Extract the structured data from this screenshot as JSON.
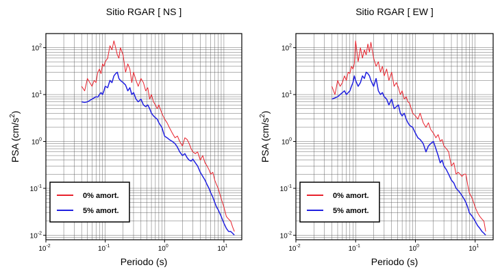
{
  "chart_data": [
    {
      "type": "line",
      "title": "Sitio RGAR [ NS ]",
      "xlabel": "Periodo (s)",
      "ylabel_base": "PSA (cm/s",
      "ylabel_sup": "2",
      "ylabel_end": ")",
      "xscale": "log",
      "yscale": "log",
      "xlim": [
        0.01,
        20
      ],
      "ylim": [
        0.008,
        200
      ],
      "grid": true,
      "legend_position": "bottom-left",
      "xticks": [
        {
          "base": "10",
          "exp": "-2"
        },
        {
          "base": "10",
          "exp": "-1"
        },
        {
          "base": "10",
          "exp": "0"
        },
        {
          "base": "10",
          "exp": "1"
        }
      ],
      "yticks": [
        {
          "base": "10",
          "exp": "-2"
        },
        {
          "base": "10",
          "exp": "-1"
        },
        {
          "base": "10",
          "exp": "0"
        },
        {
          "base": "10",
          "exp": "1"
        },
        {
          "base": "10",
          "exp": "2"
        }
      ],
      "series": [
        {
          "name": "0% amort.",
          "color": "#e8202a",
          "x": [
            0.04,
            0.045,
            0.05,
            0.055,
            0.06,
            0.065,
            0.07,
            0.075,
            0.08,
            0.085,
            0.09,
            0.095,
            0.1,
            0.11,
            0.12,
            0.13,
            0.14,
            0.15,
            0.16,
            0.17,
            0.18,
            0.2,
            0.22,
            0.24,
            0.26,
            0.28,
            0.3,
            0.33,
            0.36,
            0.4,
            0.44,
            0.48,
            0.52,
            0.56,
            0.6,
            0.65,
            0.7,
            0.75,
            0.8,
            0.9,
            1.0,
            1.1,
            1.2,
            1.35,
            1.5,
            1.65,
            1.8,
            2.0,
            2.2,
            2.4,
            2.6,
            2.8,
            3.0,
            3.3,
            3.6,
            4.0,
            4.4,
            4.8,
            5.2,
            5.6,
            6.0,
            6.5,
            7.0,
            7.5,
            8.0,
            9.0,
            10.0,
            11.0,
            12.0,
            13.0,
            14.0,
            15.0
          ],
          "y": [
            15,
            12,
            22,
            18,
            15,
            20,
            18,
            30,
            35,
            28,
            45,
            40,
            50,
            60,
            110,
            90,
            140,
            100,
            70,
            60,
            100,
            70,
            30,
            45,
            35,
            18,
            30,
            20,
            15,
            22,
            18,
            12,
            14,
            8,
            10,
            7,
            6,
            5,
            6,
            4,
            3,
            2.5,
            2,
            1.5,
            1.2,
            1.3,
            1,
            0.8,
            1.2,
            1.1,
            0.9,
            0.7,
            0.6,
            0.55,
            0.6,
            0.4,
            0.5,
            0.35,
            0.3,
            0.25,
            0.2,
            0.22,
            0.15,
            0.12,
            0.1,
            0.06,
            0.04,
            0.025,
            0.022,
            0.02,
            0.015,
            0.012
          ]
        },
        {
          "name": "5% amort.",
          "color": "#1f1fe0",
          "x": [
            0.04,
            0.045,
            0.05,
            0.055,
            0.06,
            0.065,
            0.07,
            0.075,
            0.08,
            0.085,
            0.09,
            0.095,
            0.1,
            0.11,
            0.12,
            0.13,
            0.14,
            0.15,
            0.16,
            0.17,
            0.18,
            0.2,
            0.22,
            0.24,
            0.26,
            0.28,
            0.3,
            0.33,
            0.36,
            0.4,
            0.44,
            0.48,
            0.52,
            0.56,
            0.6,
            0.65,
            0.7,
            0.75,
            0.8,
            0.9,
            1.0,
            1.1,
            1.2,
            1.35,
            1.5,
            1.65,
            1.8,
            2.0,
            2.2,
            2.4,
            2.6,
            2.8,
            3.0,
            3.3,
            3.6,
            4.0,
            4.4,
            4.8,
            5.2,
            5.6,
            6.0,
            6.5,
            7.0,
            7.5,
            8.0,
            9.0,
            10.0,
            11.0,
            12.0,
            13.0,
            14.0,
            15.0
          ],
          "y": [
            7,
            6.8,
            7,
            7.5,
            8,
            8.5,
            9,
            8.8,
            10,
            11,
            10,
            12,
            15,
            14,
            20,
            18,
            25,
            28,
            30,
            22,
            20,
            18,
            16,
            12,
            14,
            10,
            11,
            8,
            7,
            8,
            6,
            5.5,
            6,
            5,
            4,
            3.5,
            3.2,
            3,
            2.5,
            2,
            1.3,
            1.2,
            1.1,
            1.0,
            0.9,
            0.75,
            0.6,
            0.5,
            0.55,
            0.45,
            0.4,
            0.38,
            0.42,
            0.35,
            0.3,
            0.22,
            0.18,
            0.15,
            0.12,
            0.1,
            0.08,
            0.065,
            0.05,
            0.04,
            0.035,
            0.025,
            0.018,
            0.014,
            0.012,
            0.012,
            0.011,
            0.01
          ]
        }
      ]
    },
    {
      "type": "line",
      "title": "Sitio RGAR [ EW ]",
      "xlabel": "Periodo (s)",
      "ylabel_base": "PSA (cm/s",
      "ylabel_sup": "2",
      "ylabel_end": ")",
      "xscale": "log",
      "yscale": "log",
      "xlim": [
        0.01,
        20
      ],
      "ylim": [
        0.008,
        200
      ],
      "grid": true,
      "legend_position": "bottom-left",
      "xticks": [
        {
          "base": "10",
          "exp": "-2"
        },
        {
          "base": "10",
          "exp": "-1"
        },
        {
          "base": "10",
          "exp": "0"
        },
        {
          "base": "10",
          "exp": "1"
        }
      ],
      "yticks": [
        {
          "base": "10",
          "exp": "-2"
        },
        {
          "base": "10",
          "exp": "-1"
        },
        {
          "base": "10",
          "exp": "0"
        },
        {
          "base": "10",
          "exp": "1"
        },
        {
          "base": "10",
          "exp": "2"
        }
      ],
      "series": [
        {
          "name": "0% amort.",
          "color": "#e8202a",
          "x": [
            0.04,
            0.045,
            0.05,
            0.055,
            0.06,
            0.065,
            0.07,
            0.075,
            0.08,
            0.085,
            0.09,
            0.095,
            0.1,
            0.11,
            0.12,
            0.13,
            0.14,
            0.15,
            0.16,
            0.17,
            0.18,
            0.2,
            0.22,
            0.24,
            0.26,
            0.28,
            0.3,
            0.33,
            0.36,
            0.4,
            0.44,
            0.48,
            0.52,
            0.56,
            0.6,
            0.65,
            0.7,
            0.75,
            0.8,
            0.9,
            1.0,
            1.1,
            1.2,
            1.35,
            1.5,
            1.65,
            1.8,
            2.0,
            2.2,
            2.4,
            2.6,
            2.8,
            3.0,
            3.3,
            3.6,
            4.0,
            4.4,
            4.8,
            5.2,
            5.6,
            6.0,
            6.5,
            7.0,
            7.5,
            8.0,
            9.0,
            10.0,
            11.0,
            12.0,
            13.0,
            14.0,
            15.0
          ],
          "y": [
            15,
            10,
            20,
            15,
            18,
            25,
            20,
            30,
            28,
            40,
            35,
            45,
            140,
            50,
            100,
            60,
            90,
            70,
            120,
            80,
            130,
            60,
            40,
            50,
            30,
            40,
            25,
            35,
            20,
            30,
            15,
            18,
            14,
            10,
            12,
            8,
            9,
            7,
            6.5,
            4,
            3.5,
            3,
            4,
            2.5,
            2,
            2.5,
            1.8,
            1.5,
            1.2,
            1.4,
            1,
            1.1,
            0.8,
            0.7,
            0.6,
            0.3,
            0.35,
            0.2,
            0.22,
            0.2,
            0.18,
            0.2,
            0.2,
            0.12,
            0.08,
            0.06,
            0.04,
            0.03,
            0.025,
            0.022,
            0.02,
            0.012
          ]
        },
        {
          "name": "5% amort.",
          "color": "#1f1fe0",
          "x": [
            0.04,
            0.045,
            0.05,
            0.055,
            0.06,
            0.065,
            0.07,
            0.075,
            0.08,
            0.085,
            0.09,
            0.095,
            0.1,
            0.11,
            0.12,
            0.13,
            0.14,
            0.15,
            0.16,
            0.17,
            0.18,
            0.2,
            0.22,
            0.24,
            0.26,
            0.28,
            0.3,
            0.33,
            0.36,
            0.4,
            0.44,
            0.48,
            0.52,
            0.56,
            0.6,
            0.65,
            0.7,
            0.75,
            0.8,
            0.9,
            1.0,
            1.1,
            1.2,
            1.35,
            1.5,
            1.65,
            1.8,
            2.0,
            2.2,
            2.4,
            2.6,
            2.8,
            3.0,
            3.3,
            3.6,
            4.0,
            4.4,
            4.8,
            5.2,
            5.6,
            6.0,
            6.5,
            7.0,
            7.5,
            8.0,
            9.0,
            10.0,
            11.0,
            12.0,
            13.0,
            14.0,
            15.0
          ],
          "y": [
            8,
            8.5,
            9,
            10,
            11,
            12,
            10,
            11,
            12,
            15,
            18,
            25,
            20,
            15,
            18,
            25,
            22,
            30,
            28,
            25,
            20,
            15,
            22,
            12,
            10,
            11,
            9,
            8,
            6,
            8,
            5,
            5.5,
            6,
            4,
            3.5,
            4,
            3,
            2.5,
            2.2,
            2,
            1.5,
            1.2,
            1.1,
            0.9,
            0.6,
            0.8,
            0.9,
            1.0,
            0.7,
            0.5,
            0.35,
            0.4,
            0.3,
            0.25,
            0.2,
            0.15,
            0.13,
            0.1,
            0.09,
            0.08,
            0.07,
            0.06,
            0.05,
            0.04,
            0.03,
            0.025,
            0.02,
            0.016,
            0.014,
            0.012,
            0.011,
            0.01
          ]
        }
      ]
    }
  ]
}
